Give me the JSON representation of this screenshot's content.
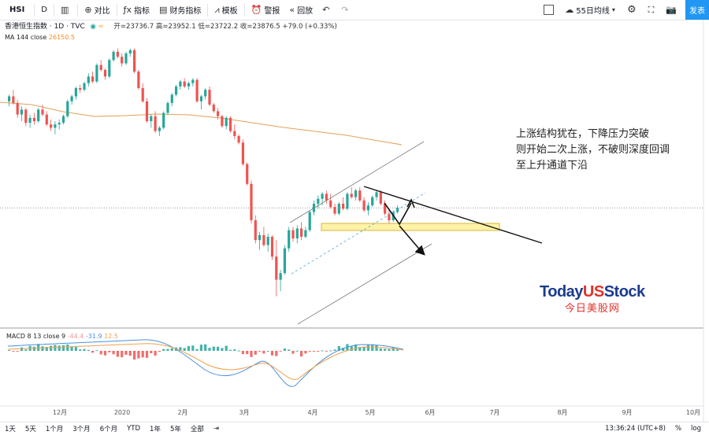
{
  "toolbar": {
    "symbol": "HSI",
    "interval": "D",
    "compare": "对比",
    "indicators": "指标",
    "financials": "财务指标",
    "templates": "模板",
    "alert": "警报",
    "replay": "回放",
    "layout_name": "55日均线",
    "publish": "发表"
  },
  "legend": {
    "title": "香港恒生指数 · 1D · TVC",
    "ohlc": "开=23736.7 高=23952.1 低=23722.2 收=23876.5 +79.0 (+0.33%)",
    "ma_label": "MA 144 close",
    "ma_value": "26150.5",
    "macd_label": "MACD 8 13 close 9",
    "macd_v1": "-44.4",
    "macd_v2": "-31.9",
    "macd_v3": "12.5"
  },
  "annotation": {
    "line1": "上涨结构犹在，下降压力突破",
    "line2": "则开始二次上涨，不破则深度回调",
    "line3": "至上升通道下沿"
  },
  "logo": {
    "brand_a": "Today",
    "brand_b": "US",
    "brand_c": "Stock",
    "sub": "今日美股网"
  },
  "bottom": {
    "ranges": [
      "1天",
      "5天",
      "1个月",
      "3个月",
      "6个月",
      "YTD",
      "1年",
      "5年",
      "全部"
    ],
    "time": "13:36:24 (UTC+8)",
    "pct": "%",
    "log": "log"
  },
  "chart_data": {
    "type": "candlestick",
    "x_ticks": [
      "12月",
      "2020",
      "2月",
      "3月",
      "4月",
      "5月",
      "6月",
      "7月",
      "8月",
      "9月",
      "10月"
    ],
    "colors": {
      "up": "#26a69a",
      "down": "#ef5350",
      "ma": "#e3a15a",
      "signal": "#f0a04b",
      "macd": "#4a90e2",
      "highlight": "#fff2a8"
    },
    "candles": [
      [
        27100,
        27300,
        26950,
        27250
      ],
      [
        27250,
        27450,
        27000,
        27050
      ],
      [
        27050,
        27150,
        26600,
        26700
      ],
      [
        26700,
        26950,
        26500,
        26850
      ],
      [
        26850,
        26900,
        26350,
        26450
      ],
      [
        26450,
        26700,
        26300,
        26600
      ],
      [
        26600,
        26750,
        26400,
        26500
      ],
      [
        26500,
        26900,
        26450,
        26850
      ],
      [
        26850,
        27000,
        26650,
        26700
      ],
      [
        26700,
        26800,
        26350,
        26400
      ],
      [
        26400,
        26550,
        26200,
        26300
      ],
      [
        26300,
        26500,
        26100,
        26400
      ],
      [
        26400,
        26550,
        26250,
        26450
      ],
      [
        26450,
        26700,
        26400,
        26650
      ],
      [
        26650,
        27150,
        26600,
        27100
      ],
      [
        27100,
        27300,
        27000,
        27250
      ],
      [
        27250,
        27550,
        27150,
        27500
      ],
      [
        27500,
        27600,
        27350,
        27450
      ],
      [
        27450,
        27700,
        27400,
        27650
      ],
      [
        27650,
        27950,
        27550,
        27850
      ],
      [
        27850,
        28000,
        27650,
        27700
      ],
      [
        27700,
        28250,
        27650,
        28200
      ],
      [
        28200,
        28350,
        28000,
        28050
      ],
      [
        28050,
        28100,
        27750,
        27850
      ],
      [
        27850,
        28400,
        27800,
        28350
      ],
      [
        28350,
        28650,
        28300,
        28600
      ],
      [
        28600,
        28700,
        28400,
        28450
      ],
      [
        28450,
        28550,
        28150,
        28250
      ],
      [
        28250,
        28600,
        28200,
        28550
      ],
      [
        28550,
        28700,
        28450,
        28650
      ],
      [
        28650,
        28700,
        27950,
        28000
      ],
      [
        28000,
        28050,
        27450,
        27500
      ],
      [
        27500,
        27650,
        27050,
        27100
      ],
      [
        27100,
        27200,
        26450,
        26500
      ],
      [
        26500,
        26700,
        26300,
        26650
      ],
      [
        26650,
        26800,
        26150,
        26200
      ],
      [
        26200,
        26350,
        26050,
        26300
      ],
      [
        26300,
        26800,
        26250,
        26750
      ],
      [
        26750,
        27100,
        26700,
        27050
      ],
      [
        27050,
        27350,
        26950,
        27300
      ],
      [
        27300,
        27600,
        27250,
        27550
      ],
      [
        27550,
        27750,
        27450,
        27700
      ],
      [
        27700,
        27800,
        27500,
        27550
      ],
      [
        27550,
        27700,
        27450,
        27650
      ],
      [
        27650,
        27800,
        27550,
        27750
      ],
      [
        27750,
        27800,
        27050,
        27100
      ],
      [
        27100,
        27300,
        26850,
        27250
      ],
      [
        27250,
        27500,
        27150,
        27450
      ],
      [
        27450,
        27550,
        26950,
        27000
      ],
      [
        27000,
        27050,
        26750,
        26800
      ],
      [
        26800,
        26900,
        26550,
        26650
      ],
      [
        26650,
        26700,
        26300,
        26350
      ],
      [
        26350,
        26650,
        26250,
        26600
      ],
      [
        26600,
        26650,
        26150,
        26200
      ],
      [
        26200,
        26400,
        25950,
        26050
      ],
      [
        26050,
        26100,
        25800,
        25850
      ],
      [
        25850,
        25950,
        25150,
        25200
      ],
      [
        25200,
        25250,
        24550,
        24600
      ],
      [
        24600,
        24700,
        23400,
        23500
      ],
      [
        23500,
        23650,
        22800,
        22900
      ],
      [
        22900,
        23150,
        22600,
        23050
      ],
      [
        23050,
        23300,
        22700,
        22750
      ],
      [
        22750,
        23100,
        22550,
        23000
      ],
      [
        23000,
        23050,
        22300,
        22400
      ],
      [
        22400,
        22900,
        21200,
        21700
      ],
      [
        21700,
        22000,
        21350,
        21900
      ],
      [
        21900,
        22750,
        21850,
        22650
      ],
      [
        22650,
        23300,
        22550,
        23200
      ],
      [
        23200,
        23300,
        22850,
        22950
      ],
      [
        22950,
        23350,
        22800,
        23250
      ],
      [
        23250,
        23450,
        22900,
        23000
      ],
      [
        23000,
        23300,
        22950,
        23200
      ],
      [
        23200,
        23800,
        23150,
        23750
      ],
      [
        23750,
        24100,
        23650,
        24000
      ],
      [
        24000,
        24250,
        23850,
        24150
      ],
      [
        24150,
        24350,
        23950,
        24300
      ],
      [
        24300,
        24400,
        24000,
        24100
      ],
      [
        24100,
        24300,
        23850,
        23900
      ],
      [
        23900,
        24000,
        23650,
        23700
      ],
      [
        23700,
        24050,
        23650,
        24000
      ],
      [
        24000,
        24200,
        23800,
        23850
      ],
      [
        23850,
        24350,
        23800,
        24300
      ],
      [
        24300,
        24500,
        24150,
        24200
      ],
      [
        24200,
        24450,
        24100,
        24400
      ],
      [
        24400,
        24500,
        24050,
        24100
      ],
      [
        24100,
        24200,
        23750,
        23800
      ],
      [
        23800,
        24050,
        23650,
        23950
      ],
      [
        23950,
        24250,
        23900,
        24200
      ],
      [
        24200,
        24400,
        24100,
        24350
      ],
      [
        24350,
        24400,
        23950,
        24000
      ],
      [
        24000,
        24100,
        23650,
        23700
      ],
      [
        23700,
        23850,
        23400,
        23500
      ],
      [
        23500,
        23800,
        23450,
        23750
      ],
      [
        23750,
        23950,
        23700,
        23880
      ]
    ]
  }
}
